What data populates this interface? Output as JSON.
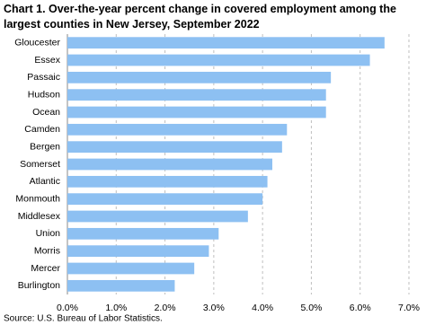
{
  "chart_data": {
    "type": "hbar",
    "title": "Chart 1. Over-the-year percent change in covered employment among the largest counties in New Jersey, September 2022",
    "source": "Source: U.S. Bureau of Labor Statistics.",
    "categories": [
      "Gloucester",
      "Essex",
      "Passaic",
      "Hudson",
      "Ocean",
      "Camden",
      "Bergen",
      "Somerset",
      "Atlantic",
      "Monmouth",
      "Middlesex",
      "Union",
      "Morris",
      "Mercer",
      "Burlington"
    ],
    "values": [
      6.5,
      6.2,
      5.4,
      5.3,
      5.3,
      4.5,
      4.4,
      4.2,
      4.1,
      4.0,
      3.7,
      3.1,
      2.9,
      2.6,
      2.2
    ],
    "color": "#8dc0f2",
    "xlim": [
      0,
      7
    ],
    "xticks": [
      {
        "value": 0,
        "label": "0.0%"
      },
      {
        "value": 1,
        "label": "1.0%"
      },
      {
        "value": 2,
        "label": "2.0%"
      },
      {
        "value": 3,
        "label": "3.0%"
      },
      {
        "value": 4,
        "label": "4.0%"
      },
      {
        "value": 5,
        "label": "5.0%"
      },
      {
        "value": 6,
        "label": "6.0%"
      },
      {
        "value": 7,
        "label": "7.0%"
      }
    ],
    "grid": true
  }
}
